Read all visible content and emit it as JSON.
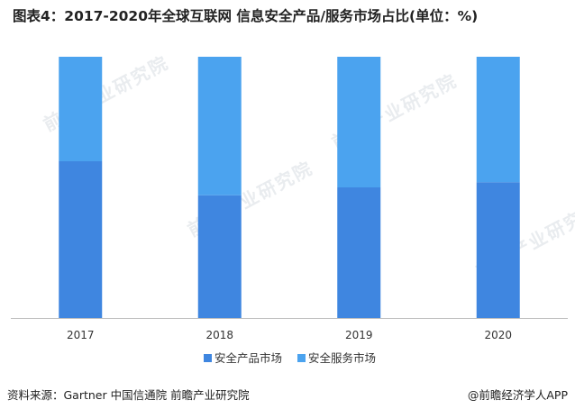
{
  "title": "图表4：2017-2020年全球互联网 信息安全产品/服务市场占比(单位：%)",
  "watermark_text": "前瞻产业研究院",
  "source": "资料来源：Gartner 中国信通院 前瞻产业研究院",
  "credit": "@前瞻经济学人APP",
  "colors": {
    "product": "#3f86e0",
    "service": "#4ba3ef",
    "axis": "#bfbfbf"
  },
  "chart_data": {
    "type": "bar",
    "stacked": true,
    "categories": [
      "2017",
      "2018",
      "2019",
      "2020"
    ],
    "series": [
      {
        "name": "安全产品市场",
        "values": [
          60,
          47,
          50,
          52
        ]
      },
      {
        "name": "安全服务市场",
        "values": [
          40,
          53,
          50,
          48
        ]
      }
    ],
    "ylim": [
      0,
      100
    ],
    "grid": false,
    "legend_position": "bottom-center"
  }
}
